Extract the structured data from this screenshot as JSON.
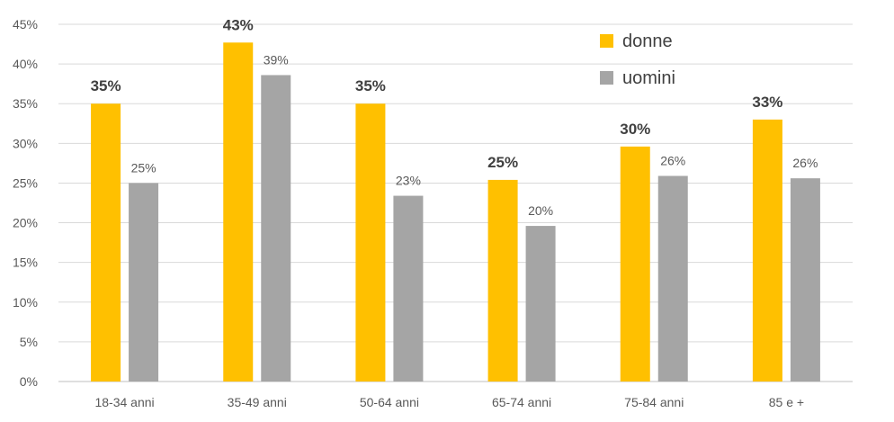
{
  "chart_data": {
    "type": "bar",
    "categories": [
      "18-34 anni",
      "35-49 anni",
      "50-64 anni",
      "65-74 anni",
      "75-84 anni",
      "85 e +"
    ],
    "series": [
      {
        "name": "donne",
        "color": "#FFC000",
        "values": [
          35,
          42.7,
          35,
          25.4,
          29.6,
          33
        ],
        "labels": [
          "35%",
          "43%",
          "35%",
          "25%",
          "30%",
          "33%"
        ]
      },
      {
        "name": "uomini",
        "color": "#A5A5A5",
        "values": [
          25,
          38.6,
          23.4,
          19.6,
          25.9,
          25.6
        ],
        "labels": [
          "25%",
          "39%",
          "23%",
          "20%",
          "26%",
          "26%"
        ]
      }
    ],
    "ylim": [
      0,
      45
    ],
    "yticks": [
      "0%",
      "5%",
      "10%",
      "15%",
      "20%",
      "25%",
      "30%",
      "35%",
      "40%",
      "45%"
    ],
    "ytick_values": [
      0,
      5,
      10,
      15,
      20,
      25,
      30,
      35,
      40,
      45
    ],
    "grid": true,
    "legend_position": "top-right"
  }
}
